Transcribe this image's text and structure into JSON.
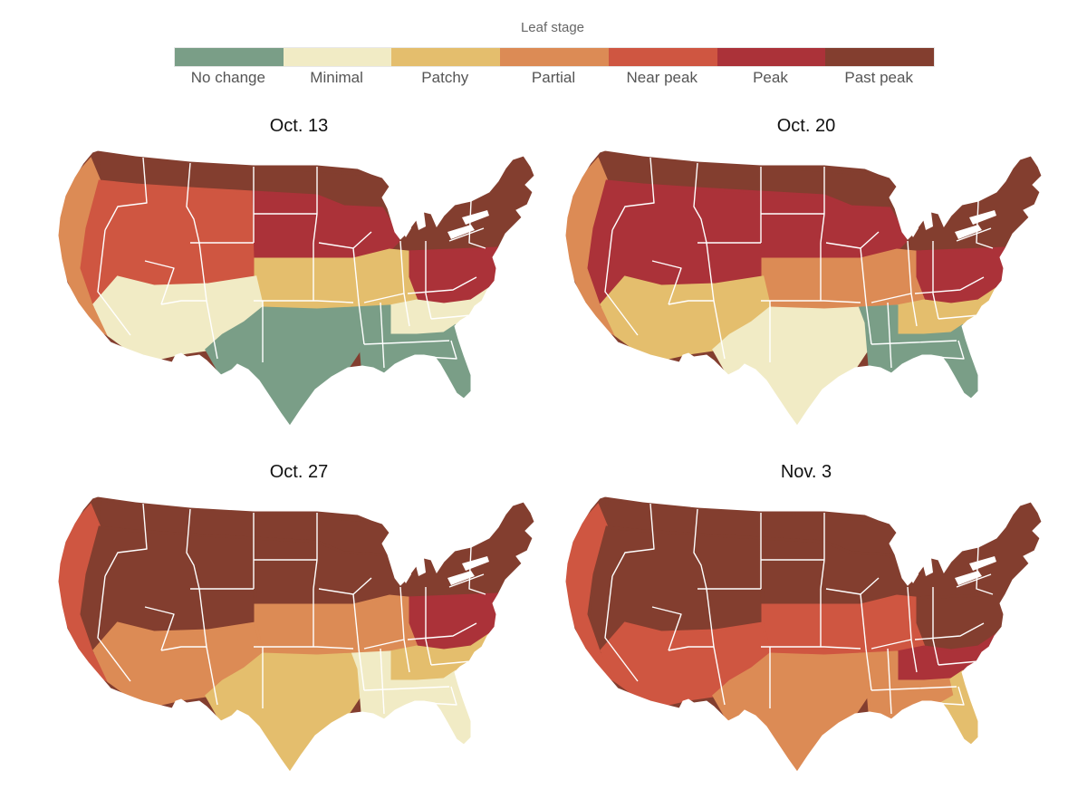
{
  "legend": {
    "title": "Leaf stage",
    "stages": [
      {
        "label": "No change",
        "color": "#7a9e87"
      },
      {
        "label": "Minimal",
        "color": "#f1ebc5"
      },
      {
        "label": "Patchy",
        "color": "#e4be6d"
      },
      {
        "label": "Partial",
        "color": "#dc8b55"
      },
      {
        "label": "Near peak",
        "color": "#cf5641"
      },
      {
        "label": "Peak",
        "color": "#ab3239"
      },
      {
        "label": "Past peak",
        "color": "#833e2f"
      }
    ]
  },
  "maps": [
    {
      "date": "Oct. 13",
      "regions": {
        "north": 6,
        "west": 4,
        "central_north": 5,
        "plains": 2,
        "southwest": 1,
        "southeast": 1,
        "texas": 0,
        "gulf": 0,
        "florida": 0,
        "appalachia": 5,
        "northeast": 6,
        "pacific_coast": 3
      }
    },
    {
      "date": "Oct. 20",
      "regions": {
        "north": 6,
        "west": 5,
        "central_north": 5,
        "plains": 3,
        "southwest": 2,
        "southeast": 2,
        "texas": 1,
        "gulf": 0,
        "florida": 0,
        "appalachia": 5,
        "northeast": 6,
        "pacific_coast": 3
      }
    },
    {
      "date": "Oct. 27",
      "regions": {
        "north": 6,
        "west": 6,
        "central_north": 6,
        "plains": 3,
        "southwest": 3,
        "southeast": 2,
        "texas": 2,
        "gulf": 1,
        "florida": 1,
        "appalachia": 5,
        "northeast": 6,
        "pacific_coast": 4
      }
    },
    {
      "date": "Nov. 3",
      "regions": {
        "north": 6,
        "west": 6,
        "central_north": 6,
        "plains": 4,
        "southwest": 4,
        "southeast": 5,
        "texas": 3,
        "gulf": 3,
        "florida": 2,
        "appalachia": 6,
        "northeast": 6,
        "pacific_coast": 4
      }
    }
  ]
}
